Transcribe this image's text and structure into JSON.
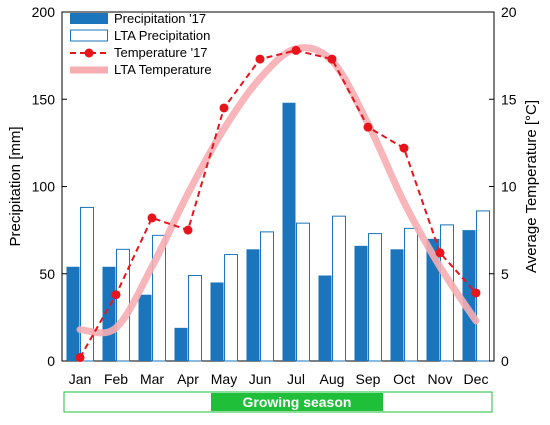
{
  "chart_data": {
    "type": "bar+line",
    "categories": [
      "Jan",
      "Feb",
      "Mar",
      "Apr",
      "May",
      "Jun",
      "Jul",
      "Aug",
      "Sep",
      "Oct",
      "Nov",
      "Dec"
    ],
    "y_left": {
      "label": "Precipitation [mm]",
      "min": 0,
      "max": 200,
      "ticks": [
        0,
        50,
        100,
        150,
        200
      ]
    },
    "y_right": {
      "label": "Average Temperature [°C]",
      "min": 0,
      "max": 20,
      "ticks": [
        0,
        5,
        10,
        15,
        20
      ]
    },
    "series": [
      {
        "name": "Precipitation '17",
        "kind": "bar-filled",
        "axis": "left",
        "color": "#1a75bc",
        "values": [
          54,
          54,
          38,
          19,
          45,
          64,
          148,
          49,
          66,
          64,
          70,
          75
        ]
      },
      {
        "name": "LTA Precipitation",
        "kind": "bar-outline",
        "axis": "left",
        "color": "#1a75bc",
        "values": [
          88,
          64,
          72,
          49,
          61,
          74,
          79,
          83,
          73,
          76,
          78,
          86
        ]
      },
      {
        "name": "Temperature '17",
        "kind": "line-dashed-markers",
        "axis": "right",
        "color": "#e8141b",
        "values": [
          0.2,
          3.8,
          8.2,
          7.5,
          14.5,
          17.3,
          17.8,
          17.3,
          13.4,
          12.2,
          6.2,
          3.9
        ]
      },
      {
        "name": "LTA Temperature",
        "kind": "line-thick-smooth",
        "axis": "right",
        "color": "#f7aeb2",
        "values": [
          1.8,
          1.9,
          5.4,
          9.6,
          13.3,
          16.2,
          17.9,
          17.2,
          13.6,
          9.1,
          5.4,
          2.3
        ]
      }
    ],
    "legend": {
      "position": "top-left"
    },
    "grid": false,
    "annotation": {
      "text": "Growing season",
      "start": "May",
      "end": "Sep",
      "color": "#1fbf3a"
    }
  }
}
